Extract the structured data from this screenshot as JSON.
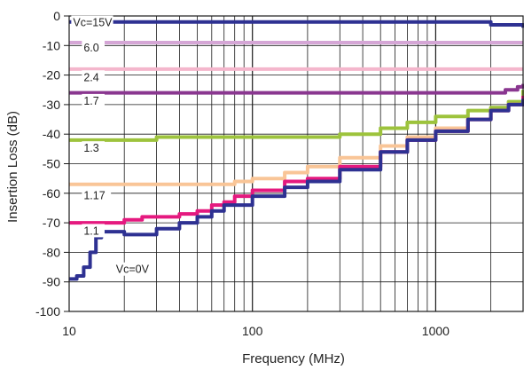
{
  "chart_data": {
    "type": "line",
    "title": "",
    "xlabel": "Frequency (MHz)",
    "ylabel": "Insertion Loss (dB)",
    "x_scale": "log",
    "xlim": [
      10,
      3000
    ],
    "ylim": [
      -100,
      0
    ],
    "grid": true,
    "legend": "none",
    "x_tick_labels": [
      {
        "value": 10,
        "label": "10"
      },
      {
        "value": 100,
        "label": "100"
      },
      {
        "value": 1000,
        "label": "1000"
      }
    ],
    "y_tick_labels": [
      {
        "value": 0,
        "label": "0"
      },
      {
        "value": -10,
        "label": "-10"
      },
      {
        "value": -20,
        "label": "-20"
      },
      {
        "value": -30,
        "label": "-30"
      },
      {
        "value": -40,
        "label": "-40"
      },
      {
        "value": -50,
        "label": "-50"
      },
      {
        "value": -60,
        "label": "-60"
      },
      {
        "value": -70,
        "label": "-70"
      },
      {
        "value": -80,
        "label": "-80"
      },
      {
        "value": -90,
        "label": "-90"
      },
      {
        "value": -100,
        "label": "-100"
      }
    ],
    "series": [
      {
        "name": "Vc=15V",
        "color": "#2e3192",
        "label_x": 10.5,
        "label_y": -3.5,
        "x": [
          10,
          200,
          400,
          1000,
          1500,
          2000,
          3000
        ],
        "y": [
          -2,
          -2,
          -2,
          -2,
          -2,
          -3,
          -4
        ]
      },
      {
        "name": "6.0",
        "color": "#d5a6d6",
        "label_x": 12,
        "label_y": -12,
        "x": [
          10,
          200,
          800,
          1000,
          2000,
          3000
        ],
        "y": [
          -9,
          -9,
          -9,
          -9,
          -9,
          -9
        ]
      },
      {
        "name": "2.4",
        "color": "#f4b6cc",
        "label_x": 12,
        "label_y": -22,
        "x": [
          10,
          200,
          1000,
          2000,
          3000
        ],
        "y": [
          -18,
          -18,
          -18,
          -18,
          -18
        ]
      },
      {
        "name": "1.7",
        "color": "#8a3790",
        "label_x": 12,
        "label_y": -30,
        "x": [
          10,
          200,
          2000,
          2400,
          2800,
          3000
        ],
        "y": [
          -26,
          -26,
          -26,
          -25,
          -24,
          -23
        ]
      },
      {
        "name": "1.3",
        "color": "#9dc33c",
        "label_x": 12,
        "label_y": -46,
        "x": [
          10,
          20,
          30,
          100,
          200,
          300,
          500,
          700,
          1000,
          1500,
          2000,
          2500,
          3000
        ],
        "y": [
          -42,
          -42,
          -41,
          -41,
          -41,
          -40,
          -38,
          -36,
          -34,
          -32,
          -31,
          -29,
          -25
        ]
      },
      {
        "name": "1.17",
        "color": "#f9c597",
        "label_x": 12,
        "label_y": -62,
        "x": [
          10,
          20,
          50,
          80,
          100,
          150,
          200,
          300,
          500,
          700,
          1000,
          1500,
          2000,
          2500,
          3000
        ],
        "y": [
          -57,
          -57,
          -57,
          -56,
          -55,
          -53,
          -51,
          -48,
          -44,
          -41,
          -38,
          -35,
          -32,
          -30,
          -27
        ]
      },
      {
        "name": "1.1",
        "color": "#e5197f",
        "label_x": 12,
        "label_y": -74,
        "x": [
          10,
          15,
          20,
          25,
          30,
          40,
          50,
          60,
          70,
          80,
          100,
          150,
          200,
          300,
          500,
          700,
          1000,
          1500,
          2000,
          2500,
          3000
        ],
        "y": [
          -70,
          -70,
          -69,
          -68,
          -68,
          -67,
          -66,
          -64,
          -63,
          -61,
          -59,
          -56,
          -55,
          -51,
          -46,
          -42,
          -39,
          -35,
          -32,
          -30,
          -27
        ]
      },
      {
        "name": "Vc=0V",
        "color": "#2e3192",
        "label_x": 18,
        "label_y": -87,
        "x": [
          10,
          11,
          12,
          13,
          14,
          15,
          17,
          20,
          23,
          30,
          40,
          50,
          60,
          70,
          80,
          100,
          150,
          200,
          300,
          500,
          700,
          1000,
          1500,
          2000,
          2500,
          3000
        ],
        "y": [
          -89,
          -88,
          -85,
          -80,
          -75,
          -73,
          -73,
          -74,
          -74,
          -72,
          -70,
          -68,
          -66,
          -64,
          -64,
          -61,
          -58,
          -56,
          -52,
          -46,
          -42,
          -39,
          -35,
          -32,
          -30,
          -28
        ]
      }
    ]
  }
}
